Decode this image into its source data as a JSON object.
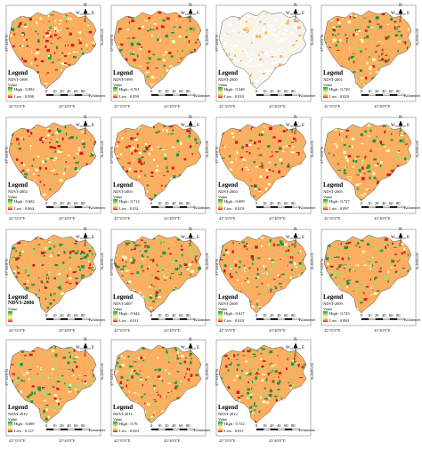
{
  "coords": {
    "lon_left": "42°35'0\"E",
    "lon_right": "43°40'0\"E",
    "lat_top": "37°10'0\"N",
    "lat_bottom": "36°50'0\"N"
  },
  "legend": {
    "title": "Legend",
    "value_label": "Value"
  },
  "scale": {
    "ticks": [
      "0",
      "10",
      "20",
      "40",
      "60",
      "80"
    ],
    "unit": "Kilometers"
  },
  "north_arrow": {
    "n": "N",
    "s": "S",
    "w": "W",
    "e": "E"
  },
  "colors": {
    "high": "#1a9641",
    "mid": "#ffffbf",
    "low": "#d7191c",
    "orange": "#fdae61"
  },
  "panels": [
    {
      "label": "NDVI-1998",
      "high": "High : 0.992",
      "low": "Low : 0.098",
      "green_share": 0.25
    },
    {
      "label": "NDVI-1999",
      "high": "High : 0.761",
      "low": "Low : 0.059",
      "green_share": 0.3
    },
    {
      "label": "NDVI-2000",
      "high": "High : 0.548",
      "low": "Low : 0.010",
      "green_share": 0.05
    },
    {
      "label": "NDVI-2001",
      "high": "High : 0.729",
      "low": "Low : 0.029",
      "green_share": 0.3
    },
    {
      "label": "NDVI-2002",
      "high": "High : 0.692",
      "low": "Low : 0.064",
      "green_share": 0.25
    },
    {
      "label": "NDVI-2003",
      "high": "High : 0.714",
      "low": "Low : 0.031",
      "green_share": 0.25
    },
    {
      "label": "NDVI-2004",
      "high": "High : 0.699",
      "low": "Low : 0.019",
      "green_share": 0.15
    },
    {
      "label": "NDVI-2005",
      "high": "High : 0.727",
      "low": "Low : 0.097",
      "green_share": 0.3
    },
    {
      "label": "NDVI-2006",
      "high": "",
      "low": "",
      "green_share": 0.55
    },
    {
      "label": "NDVI-2007",
      "high": "High : 0.644",
      "low": "Low : 0.011",
      "green_share": 0.5
    },
    {
      "label": "NDVI-2008",
      "high": "High : 0.617",
      "low": "Low : 0.010",
      "green_share": 0.3
    },
    {
      "label": "NDVI-2009",
      "high": "High : 0.743",
      "low": "Low : 0.084",
      "green_share": 0.45
    },
    {
      "label": "NDVI-2010",
      "high": "High : 0.689",
      "low": "Low : 0.127",
      "green_share": 0.5
    },
    {
      "label": "NDVI-2011",
      "high": "High : 0.76",
      "low": "Low : 0.043",
      "green_share": 0.45
    },
    {
      "label": "NDVI-2012",
      "high": "High : 0.722",
      "low": "Low : 0.011",
      "green_share": 0.45
    }
  ]
}
